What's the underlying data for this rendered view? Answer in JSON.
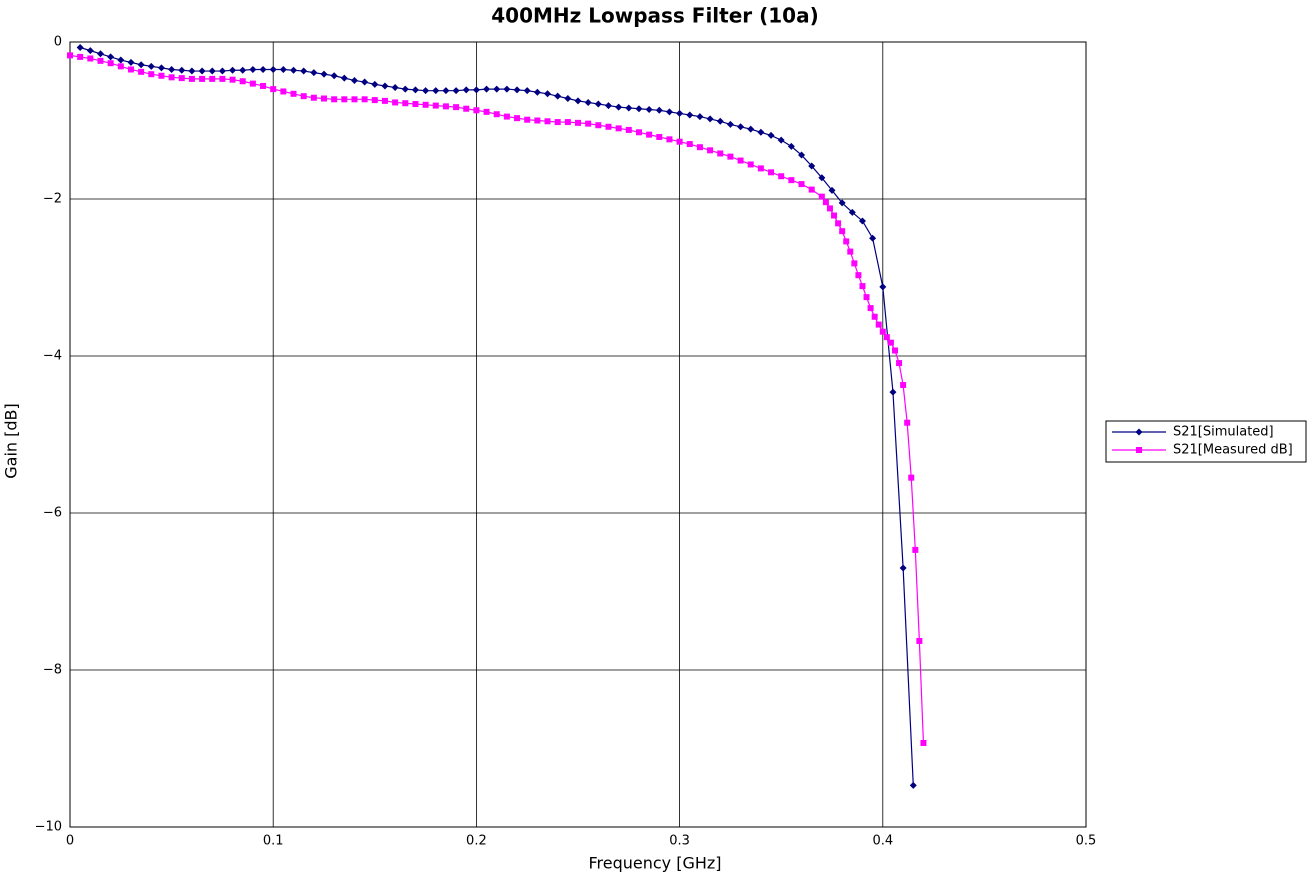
{
  "chart_data": {
    "type": "line",
    "title": "400MHz Lowpass Filter (10a)",
    "x_label": "Frequency [GHz]",
    "y_label": "Gain [dB]",
    "xlim": [
      0,
      0.5
    ],
    "ylim": [
      -10,
      0
    ],
    "xticks": [
      0,
      0.1,
      0.2,
      0.3,
      0.4,
      0.5
    ],
    "yticks": [
      {
        "value": 0,
        "label": "0"
      },
      {
        "value": -2,
        "label": "−2"
      },
      {
        "value": -4,
        "label": "−4"
      },
      {
        "value": -6,
        "label": "−6"
      },
      {
        "value": -8,
        "label": "−8"
      },
      {
        "value": -10,
        "label": "−10"
      }
    ],
    "grid": true,
    "legend": "right",
    "series": [
      {
        "name": "S21[Simulated]",
        "color": "#000080",
        "marker": "diamond",
        "x": [
          0.005,
          0.01,
          0.015,
          0.02,
          0.025,
          0.03,
          0.035,
          0.04,
          0.045,
          0.05,
          0.055,
          0.06,
          0.065,
          0.07,
          0.075,
          0.08,
          0.085,
          0.09,
          0.095,
          0.1,
          0.105,
          0.11,
          0.115,
          0.12,
          0.125,
          0.13,
          0.135,
          0.14,
          0.145,
          0.15,
          0.155,
          0.16,
          0.165,
          0.17,
          0.175,
          0.18,
          0.185,
          0.19,
          0.195,
          0.2,
          0.205,
          0.21,
          0.215,
          0.22,
          0.225,
          0.23,
          0.235,
          0.24,
          0.245,
          0.25,
          0.255,
          0.26,
          0.265,
          0.27,
          0.275,
          0.28,
          0.285,
          0.29,
          0.295,
          0.3,
          0.305,
          0.31,
          0.315,
          0.32,
          0.325,
          0.33,
          0.335,
          0.34,
          0.345,
          0.35,
          0.355,
          0.36,
          0.365,
          0.37,
          0.375,
          0.38,
          0.385,
          0.39,
          0.395,
          0.4,
          0.405,
          0.41,
          0.415
        ],
        "values": [
          -0.07,
          -0.11,
          -0.15,
          -0.19,
          -0.23,
          -0.26,
          -0.29,
          -0.31,
          -0.33,
          -0.35,
          -0.36,
          -0.37,
          -0.37,
          -0.37,
          -0.37,
          -0.36,
          -0.36,
          -0.35,
          -0.35,
          -0.35,
          -0.35,
          -0.36,
          -0.37,
          -0.39,
          -0.41,
          -0.43,
          -0.46,
          -0.49,
          -0.51,
          -0.54,
          -0.56,
          -0.58,
          -0.6,
          -0.61,
          -0.62,
          -0.62,
          -0.62,
          -0.62,
          -0.61,
          -0.61,
          -0.6,
          -0.6,
          -0.6,
          -0.61,
          -0.62,
          -0.64,
          -0.66,
          -0.69,
          -0.72,
          -0.75,
          -0.77,
          -0.79,
          -0.81,
          -0.83,
          -0.84,
          -0.85,
          -0.86,
          -0.87,
          -0.89,
          -0.91,
          -0.93,
          -0.95,
          -0.98,
          -1.01,
          -1.05,
          -1.08,
          -1.11,
          -1.15,
          -1.19,
          -1.25,
          -1.33,
          -1.44,
          -1.58,
          -1.73,
          -1.89,
          -2.05,
          -2.17,
          -2.28,
          -2.5,
          -3.12,
          -4.46,
          -6.7,
          -9.47
        ]
      },
      {
        "name": "S21[Measured dB]",
        "color": "#ff00ff",
        "marker": "square",
        "x": [
          0,
          0.005,
          0.01,
          0.015,
          0.02,
          0.025,
          0.03,
          0.035,
          0.04,
          0.045,
          0.05,
          0.055,
          0.06,
          0.065,
          0.07,
          0.075,
          0.08,
          0.085,
          0.09,
          0.095,
          0.1,
          0.105,
          0.11,
          0.115,
          0.12,
          0.125,
          0.13,
          0.135,
          0.14,
          0.145,
          0.15,
          0.155,
          0.16,
          0.165,
          0.17,
          0.175,
          0.18,
          0.185,
          0.19,
          0.195,
          0.2,
          0.205,
          0.21,
          0.215,
          0.22,
          0.225,
          0.23,
          0.235,
          0.24,
          0.245,
          0.25,
          0.255,
          0.26,
          0.265,
          0.27,
          0.275,
          0.28,
          0.285,
          0.29,
          0.295,
          0.3,
          0.305,
          0.31,
          0.315,
          0.32,
          0.325,
          0.33,
          0.335,
          0.34,
          0.345,
          0.35,
          0.355,
          0.36,
          0.365,
          0.37,
          0.372,
          0.374,
          0.376,
          0.378,
          0.38,
          0.382,
          0.384,
          0.386,
          0.388,
          0.39,
          0.392,
          0.394,
          0.396,
          0.398,
          0.4,
          0.402,
          0.404,
          0.406,
          0.408,
          0.41,
          0.412,
          0.414,
          0.416,
          0.418,
          0.42
        ],
        "values": [
          -0.17,
          -0.19,
          -0.21,
          -0.24,
          -0.27,
          -0.31,
          -0.35,
          -0.38,
          -0.41,
          -0.43,
          -0.45,
          -0.46,
          -0.47,
          -0.47,
          -0.47,
          -0.47,
          -0.48,
          -0.5,
          -0.53,
          -0.56,
          -0.6,
          -0.63,
          -0.66,
          -0.69,
          -0.71,
          -0.72,
          -0.73,
          -0.73,
          -0.73,
          -0.73,
          -0.74,
          -0.75,
          -0.77,
          -0.78,
          -0.79,
          -0.8,
          -0.81,
          -0.82,
          -0.83,
          -0.85,
          -0.87,
          -0.89,
          -0.92,
          -0.95,
          -0.97,
          -0.99,
          -1.0,
          -1.01,
          -1.02,
          -1.02,
          -1.03,
          -1.04,
          -1.06,
          -1.08,
          -1.1,
          -1.12,
          -1.15,
          -1.18,
          -1.21,
          -1.24,
          -1.27,
          -1.3,
          -1.34,
          -1.38,
          -1.42,
          -1.46,
          -1.51,
          -1.56,
          -1.61,
          -1.66,
          -1.71,
          -1.76,
          -1.81,
          -1.88,
          -1.97,
          -2.04,
          -2.12,
          -2.21,
          -2.31,
          -2.41,
          -2.54,
          -2.67,
          -2.82,
          -2.97,
          -3.11,
          -3.25,
          -3.39,
          -3.5,
          -3.6,
          -3.69,
          -3.76,
          -3.83,
          -3.93,
          -4.09,
          -4.37,
          -4.85,
          -5.55,
          -6.47,
          -7.63,
          -8.93
        ]
      }
    ]
  }
}
